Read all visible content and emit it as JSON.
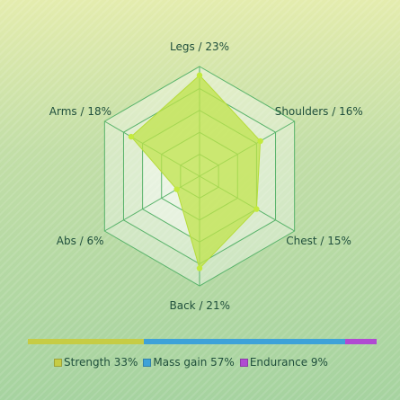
{
  "chart_data": {
    "type": "radar",
    "axes": [
      {
        "label": "Legs / 23%",
        "value": 23
      },
      {
        "label": "Shoulders / 16%",
        "value": 16
      },
      {
        "label": "Chest / 15%",
        "value": 15
      },
      {
        "label": "Back / 21%",
        "value": 21
      },
      {
        "label": "Abs / 6%",
        "value": 6
      },
      {
        "label": "Arms / 18%",
        "value": 18
      }
    ],
    "rmax": 25,
    "rings": 5,
    "series_color": "#bfe34a",
    "bar_segments": [
      {
        "name": "Strength",
        "label": "Strength 33%",
        "value": 33,
        "color": "#c6cc45"
      },
      {
        "name": "Mass gain",
        "label": "Mass gain 57%",
        "value": 57,
        "color": "#3ea2d8"
      },
      {
        "name": "Endurance",
        "label": "Endurance 9%",
        "value": 9,
        "color": "#b04ad2"
      }
    ]
  }
}
